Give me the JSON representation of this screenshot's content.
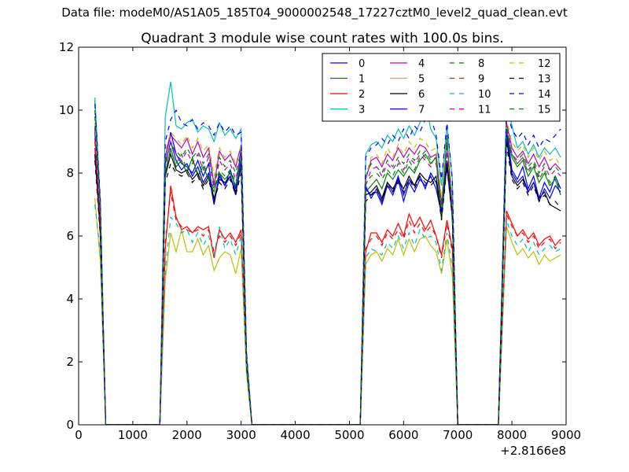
{
  "suptitle": "Data file: modeM0/AS1A05_185T04_9000002548_17227cztM0_level2_quad_clean.evt",
  "chart_data": {
    "type": "line",
    "title": "Quadrant 3 module wise count rates with 100.0s bins.",
    "xlabel": "",
    "ylabel": "",
    "xlim": [
      0,
      9000
    ],
    "ylim": [
      0,
      12
    ],
    "x_offset_label": "+2.8166e8",
    "x_ticks": [
      0,
      1000,
      2000,
      3000,
      4000,
      5000,
      6000,
      7000,
      8000,
      9000
    ],
    "y_ticks": [
      0,
      2,
      4,
      6,
      8,
      10,
      12
    ],
    "x_tick_labels": [
      "0",
      "1000",
      "2000",
      "3000",
      "4000",
      "5000",
      "6000",
      "7000",
      "8000",
      "9000"
    ],
    "y_tick_labels": [
      "0",
      "2",
      "4",
      "6",
      "8",
      "10",
      "12"
    ],
    "grid": false,
    "legend": {
      "placement": "top-right",
      "columns": 4
    },
    "segments": [
      {
        "x": [
          300,
          400,
          500
        ],
        "exit": [
          520
        ]
      },
      {
        "x": [
          1600,
          1700,
          1800,
          1900,
          2000,
          2100,
          2200,
          2300,
          2400,
          2500,
          2600,
          2700,
          2800,
          2900,
          3000,
          3100
        ],
        "enter": [
          1500
        ],
        "exit": [
          3200
        ]
      },
      {
        "x": [
          5300,
          5400,
          5500,
          5600,
          5700,
          5800,
          5900,
          6000,
          6100,
          6200,
          6300,
          6400,
          6500,
          6600,
          6700,
          6800,
          6900
        ],
        "enter": [
          5200
        ],
        "exit": [
          7000
        ]
      },
      {
        "x": [
          7900,
          8000,
          8100,
          8200,
          8300,
          8400,
          8500,
          8600,
          8700,
          8800,
          8900
        ],
        "enter": [
          7750
        ],
        "exit": []
      }
    ],
    "series": [
      {
        "name": "0",
        "color": "#0000ff",
        "dash": "solid",
        "values": [
          [
            9.5,
            6.5,
            0
          ],
          [
            8.5,
            9.3,
            8.6,
            8.3,
            8.2,
            8.0,
            8.4,
            7.9,
            8.3,
            7.0,
            8.0,
            7.6,
            8.1,
            7.5,
            8.8,
            2.0
          ],
          [
            7.6,
            7.2,
            7.5,
            7.1,
            7.7,
            7.4,
            7.9,
            7.3,
            7.8,
            7.6,
            7.9,
            7.5,
            8.0,
            7.7,
            6.8,
            8.4,
            6.6
          ],
          [
            9.4,
            8.1,
            7.8,
            8.2,
            7.5,
            7.9,
            7.2,
            7.7,
            7.4,
            7.9,
            7.5
          ]
        ]
      },
      {
        "name": "1",
        "color": "#008000",
        "dash": "solid",
        "values": [
          [
            10.3,
            7.0,
            0
          ],
          [
            8.0,
            8.8,
            8.2,
            8.4,
            8.0,
            8.5,
            7.9,
            8.2,
            7.8,
            7.4,
            8.0,
            7.8,
            8.0,
            7.6,
            8.5,
            2.0
          ],
          [
            7.4,
            7.6,
            7.8,
            7.5,
            8.0,
            7.8,
            8.1,
            7.9,
            8.2,
            8.0,
            8.4,
            8.6,
            8.3,
            8.5,
            6.5,
            9.2,
            6.5
          ],
          [
            9.2,
            8.5,
            8.2,
            8.4,
            7.9,
            8.2,
            7.7,
            8.0,
            7.6,
            7.8,
            7.3
          ]
        ]
      },
      {
        "name": "2",
        "color": "#ff0000",
        "dash": "solid",
        "values": [
          [
            8.8,
            6.0,
            0
          ],
          [
            5.6,
            7.6,
            6.6,
            6.2,
            6.3,
            6.1,
            6.3,
            6.2,
            6.3,
            5.3,
            6.2,
            5.9,
            6.1,
            5.8,
            6.2,
            1.8
          ],
          [
            5.5,
            6.1,
            6.1,
            5.8,
            6.2,
            6.0,
            6.4,
            6.0,
            6.7,
            6.3,
            6.6,
            6.2,
            6.5,
            6.0,
            5.4,
            6.5,
            5.6
          ],
          [
            6.8,
            6.4,
            6.0,
            6.2,
            5.9,
            6.1,
            5.7,
            5.9,
            6.0,
            5.7,
            5.9
          ]
        ]
      },
      {
        "name": "3",
        "color": "#00bfbf",
        "dash": "solid",
        "values": [
          [
            10.4,
            7.1,
            0
          ],
          [
            9.8,
            10.9,
            9.5,
            9.4,
            9.6,
            9.7,
            9.3,
            9.5,
            9.4,
            9.0,
            9.6,
            9.2,
            9.4,
            9.1,
            9.4,
            2.3
          ],
          [
            8.6,
            8.9,
            9.0,
            8.8,
            9.2,
            9.0,
            9.4,
            9.1,
            9.5,
            9.2,
            9.6,
            10.3,
            9.4,
            9.1,
            7.6,
            9.5,
            7.8
          ],
          [
            10.3,
            9.5,
            8.8,
            9.0,
            8.6,
            8.9,
            8.5,
            8.8,
            8.6,
            8.8,
            8.5
          ]
        ]
      },
      {
        "name": "4",
        "color": "#bf00bf",
        "dash": "solid",
        "values": [
          [
            9.4,
            6.8,
            0
          ],
          [
            8.5,
            9.2,
            9.0,
            8.8,
            9.1,
            8.6,
            9.0,
            8.5,
            8.8,
            7.6,
            8.7,
            8.4,
            8.6,
            8.2,
            8.9,
            2.1
          ],
          [
            7.8,
            8.4,
            8.5,
            8.2,
            8.6,
            8.4,
            8.8,
            8.5,
            8.8,
            8.6,
            8.9,
            8.8,
            8.5,
            8.6,
            7.0,
            9.0,
            7.1
          ],
          [
            9.6,
            8.8,
            8.5,
            8.7,
            8.3,
            8.6,
            8.2,
            8.5,
            8.1,
            8.3,
            8.1
          ]
        ]
      },
      {
        "name": "5",
        "color": "#bfbf00",
        "dash": "solid",
        "values": [
          [
            7.2,
            5.2,
            0
          ],
          [
            4.6,
            6.1,
            5.5,
            6.2,
            5.5,
            5.5,
            5.9,
            5.4,
            5.7,
            4.9,
            5.3,
            5.5,
            5.4,
            4.8,
            5.6,
            1.6
          ],
          [
            5.1,
            5.4,
            5.5,
            5.2,
            5.6,
            5.4,
            5.9,
            5.4,
            5.9,
            5.5,
            5.9,
            6.0,
            5.7,
            5.5,
            4.8,
            5.9,
            4.7
          ],
          [
            6.3,
            5.8,
            5.4,
            5.6,
            5.3,
            5.5,
            5.1,
            5.4,
            5.2,
            5.3,
            5.4
          ]
        ]
      },
      {
        "name": "6",
        "color": "#000000",
        "dash": "solid",
        "values": [
          [
            8.6,
            6.2,
            0
          ],
          [
            7.9,
            8.6,
            8.1,
            8.0,
            8.1,
            7.8,
            8.0,
            7.6,
            7.9,
            7.2,
            7.8,
            7.7,
            7.9,
            7.4,
            8.2,
            1.9
          ],
          [
            7.3,
            7.4,
            7.6,
            7.2,
            7.7,
            7.5,
            7.8,
            7.5,
            7.9,
            7.6,
            8.0,
            7.8,
            7.7,
            7.9,
            6.6,
            8.4,
            6.7
          ],
          [
            9.1,
            7.9,
            7.6,
            7.8,
            7.4,
            7.7,
            7.2,
            7.4,
            7.0,
            6.9,
            6.8
          ]
        ]
      },
      {
        "name": "7",
        "color": "#0000ff",
        "dash": "solid",
        "values": [
          [
            9.3,
            6.6,
            0
          ],
          [
            8.3,
            9.0,
            8.4,
            8.1,
            8.3,
            7.9,
            8.2,
            7.7,
            8.0,
            7.0,
            7.9,
            7.6,
            7.9,
            7.3,
            8.4,
            2.0
          ],
          [
            7.5,
            7.3,
            7.4,
            7.0,
            7.6,
            7.3,
            7.8,
            7.1,
            7.7,
            7.4,
            7.8,
            7.6,
            7.9,
            7.5,
            6.7,
            8.2,
            6.6
          ],
          [
            9.3,
            8.0,
            7.7,
            7.9,
            7.4,
            7.7,
            7.1,
            7.5,
            7.2,
            7.6,
            7.4
          ]
        ]
      },
      {
        "name": "8",
        "color": "#008000",
        "dash": "dashed",
        "values": [
          [
            10.0,
            7.0,
            0
          ],
          [
            8.4,
            8.9,
            8.7,
            8.5,
            8.8,
            8.5,
            8.7,
            8.3,
            8.6,
            7.7,
            8.5,
            8.2,
            8.4,
            8.0,
            8.7,
            2.1
          ],
          [
            7.9,
            8.3,
            8.2,
            8.0,
            8.4,
            8.2,
            8.5,
            8.3,
            8.6,
            8.4,
            8.7,
            8.5,
            8.3,
            8.4,
            7.0,
            8.9,
            7.0
          ],
          [
            9.5,
            8.6,
            8.4,
            8.6,
            8.2,
            8.4,
            8.0,
            8.3,
            8.1,
            8.2,
            8.0
          ]
        ]
      },
      {
        "name": "9",
        "color": "#ff0000",
        "dash": "dashed",
        "values": [
          [
            9.0,
            6.2,
            0
          ],
          [
            5.8,
            7.4,
            6.5,
            6.3,
            6.2,
            6.1,
            6.2,
            6.0,
            6.2,
            5.5,
            6.0,
            5.8,
            6.0,
            5.7,
            6.1,
            1.8
          ],
          [
            5.6,
            5.9,
            6.0,
            5.7,
            6.1,
            5.9,
            6.2,
            5.9,
            6.5,
            6.1,
            6.4,
            6.1,
            6.3,
            6.0,
            5.3,
            6.4,
            5.5
          ],
          [
            6.7,
            6.3,
            6.0,
            6.1,
            5.8,
            6.0,
            5.6,
            5.8,
            5.9,
            5.6,
            5.8
          ]
        ]
      },
      {
        "name": "10",
        "color": "#00bfbf",
        "dash": "dashed",
        "values": [
          [
            7.0,
            5.5,
            0
          ],
          [
            4.9,
            6.6,
            6.4,
            6.1,
            6.2,
            5.8,
            6.1,
            5.7,
            6.0,
            5.4,
            6.3,
            5.6,
            5.9,
            5.4,
            6.0,
            1.7
          ],
          [
            5.3,
            5.6,
            5.5,
            5.4,
            5.8,
            5.6,
            6.0,
            5.6,
            6.1,
            5.7,
            6.2,
            5.9,
            6.0,
            5.8,
            4.9,
            6.1,
            5.0
          ],
          [
            6.5,
            6.0,
            5.7,
            5.9,
            5.5,
            5.8,
            5.4,
            5.6,
            5.7,
            5.5,
            5.6
          ]
        ]
      },
      {
        "name": "11",
        "color": "#bf00bf",
        "dash": "dashed",
        "values": [
          [
            9.1,
            6.5,
            0
          ],
          [
            8.2,
            9.0,
            8.6,
            8.4,
            8.7,
            8.3,
            8.6,
            8.1,
            8.5,
            7.5,
            8.4,
            8.1,
            8.3,
            7.8,
            8.6,
            2.0
          ],
          [
            7.6,
            8.1,
            8.2,
            7.9,
            8.3,
            8.1,
            8.4,
            8.1,
            8.5,
            8.3,
            8.6,
            8.4,
            8.2,
            8.3,
            6.9,
            8.7,
            6.9
          ],
          [
            9.3,
            8.6,
            8.3,
            8.5,
            8.1,
            8.3,
            7.9,
            8.2,
            7.9,
            8.1,
            7.9
          ]
        ]
      },
      {
        "name": "12",
        "color": "#bfbf00",
        "dash": "dashed",
        "values": [
          [
            9.6,
            6.9,
            0
          ],
          [
            8.7,
            9.3,
            9.1,
            8.9,
            9.2,
            8.8,
            9.1,
            8.7,
            8.9,
            7.9,
            8.8,
            8.5,
            8.7,
            8.3,
            8.9,
            2.1
          ],
          [
            7.9,
            8.5,
            8.6,
            8.3,
            8.8,
            8.5,
            8.9,
            8.6,
            9.0,
            8.8,
            9.1,
            9.0,
            8.7,
            8.8,
            7.2,
            9.1,
            7.2
          ],
          [
            9.7,
            9.0,
            8.7,
            8.9,
            8.5,
            8.8,
            8.4,
            8.7,
            8.4,
            8.5,
            8.2
          ]
        ]
      },
      {
        "name": "13",
        "color": "#000000",
        "dash": "dashed",
        "values": [
          [
            8.4,
            6.0,
            0
          ],
          [
            7.7,
            8.3,
            8.0,
            7.9,
            8.0,
            7.7,
            7.9,
            7.5,
            7.8,
            7.1,
            7.7,
            7.5,
            7.8,
            7.3,
            8.0,
            1.9
          ],
          [
            7.1,
            7.3,
            7.5,
            7.1,
            7.6,
            7.4,
            7.7,
            7.4,
            7.8,
            7.5,
            7.9,
            7.7,
            7.6,
            7.8,
            6.5,
            8.2,
            6.6
          ],
          [
            8.9,
            7.8,
            7.5,
            7.7,
            7.3,
            7.6,
            7.1,
            7.3,
            7.0,
            7.1,
            6.9
          ]
        ]
      },
      {
        "name": "14",
        "color": "#0000ff",
        "dash": "dashed",
        "values": [
          [
            10.2,
            7.2,
            0
          ],
          [
            9.0,
            9.7,
            10.0,
            9.6,
            9.5,
            9.7,
            9.4,
            9.6,
            9.5,
            9.2,
            9.6,
            9.3,
            9.5,
            9.2,
            9.3,
            2.3
          ],
          [
            8.5,
            8.8,
            8.9,
            9.1,
            8.9,
            9.2,
            9.0,
            9.4,
            9.1,
            9.5,
            9.3,
            9.7,
            9.8,
            9.2,
            7.8,
            9.6,
            7.8
          ],
          [
            10.0,
            9.4,
            9.1,
            9.3,
            8.9,
            9.2,
            8.8,
            9.1,
            9.0,
            9.2,
            9.4
          ]
        ]
      },
      {
        "name": "15",
        "color": "#008000",
        "dash": "dashed",
        "values": [
          [
            9.8,
            7.0,
            0
          ],
          [
            8.1,
            8.7,
            8.3,
            8.6,
            8.1,
            8.4,
            8.0,
            8.3,
            7.9,
            7.5,
            8.1,
            7.9,
            8.1,
            7.7,
            8.4,
            2.0
          ],
          [
            7.7,
            7.9,
            8.0,
            7.8,
            8.1,
            7.9,
            8.3,
            8.0,
            8.4,
            8.1,
            8.5,
            8.7,
            8.4,
            8.5,
            6.7,
            9.1,
            6.7
          ],
          [
            9.4,
            8.6,
            8.3,
            8.5,
            8.0,
            8.3,
            7.8,
            8.1,
            7.7,
            7.9,
            7.4
          ]
        ]
      }
    ]
  }
}
